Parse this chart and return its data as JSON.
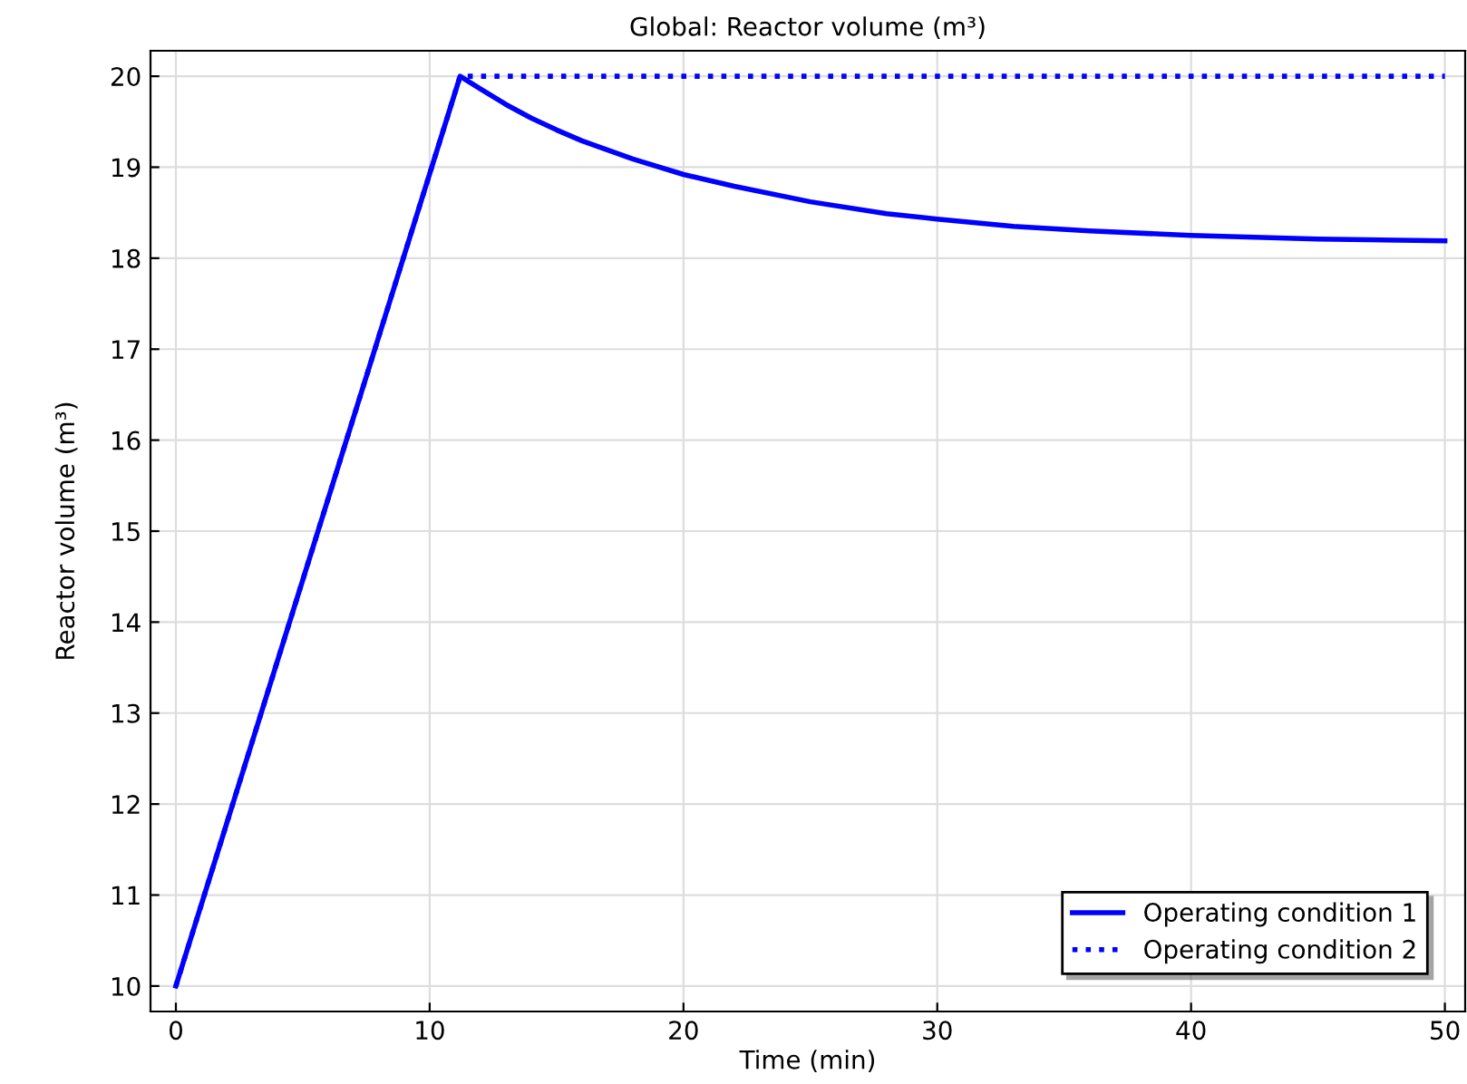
{
  "chart_data": {
    "type": "line",
    "title": "Global: Reactor volume (m³)",
    "xlabel": "Time (min)",
    "ylabel": "Reactor volume (m³)",
    "xlim": [
      -1,
      50.8
    ],
    "ylim": [
      9.72,
      20.28
    ],
    "xticks": [
      0,
      10,
      20,
      30,
      40,
      50
    ],
    "yticks": [
      10,
      11,
      12,
      13,
      14,
      15,
      16,
      17,
      18,
      19,
      20
    ],
    "grid": true,
    "legend": "bottom right",
    "marker": "none",
    "series": [
      {
        "name": "Operating condition 1",
        "color": "#0000ff",
        "line_style": "solid",
        "x": [
          0,
          11.2,
          12,
          13,
          14,
          15,
          16,
          18,
          20,
          22,
          25,
          28,
          30,
          33,
          36,
          40,
          45,
          50
        ],
        "values": [
          10,
          20,
          19.86,
          19.69,
          19.54,
          19.41,
          19.29,
          19.09,
          18.92,
          18.79,
          18.62,
          18.49,
          18.43,
          18.35,
          18.3,
          18.25,
          18.21,
          18.19
        ]
      },
      {
        "name": "Operating condition 2",
        "color": "#0000ff",
        "line_style": "dotted",
        "x": [
          0,
          11.2,
          50
        ],
        "values": [
          10,
          20,
          20
        ]
      }
    ]
  }
}
